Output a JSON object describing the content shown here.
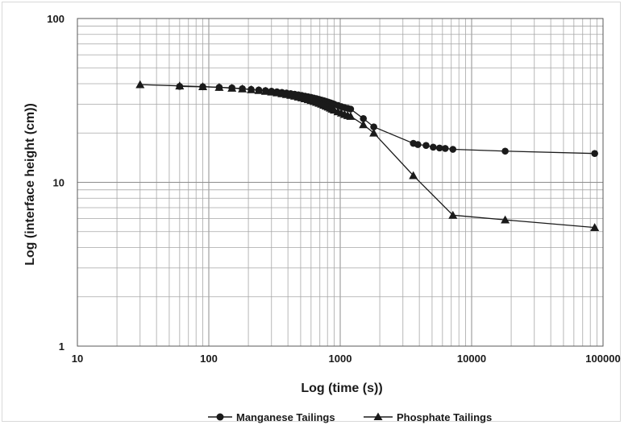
{
  "chart_data": {
    "type": "line",
    "xscale": "log",
    "yscale": "log",
    "xlim": [
      10,
      100000
    ],
    "ylim": [
      1,
      100
    ],
    "xlabel": "Log (time (s))",
    "ylabel": "Log (interface height (cm))",
    "x_tick_labels": [
      "10",
      "100",
      "1000",
      "10000",
      "100000"
    ],
    "y_tick_labels": [
      "1",
      "10",
      "100"
    ],
    "grid": true,
    "legend_position": "bottom",
    "series": [
      {
        "name": "Manganese Tailings",
        "marker": "circle",
        "color": "#1a1a1a",
        "points": [
          [
            60,
            38.5
          ],
          [
            90,
            38.3
          ],
          [
            120,
            38.0
          ],
          [
            150,
            37.7
          ],
          [
            180,
            37.3
          ],
          [
            210,
            36.9
          ],
          [
            240,
            36.6
          ],
          [
            270,
            36.3
          ],
          [
            300,
            36.0
          ],
          [
            330,
            35.7
          ],
          [
            360,
            35.4
          ],
          [
            390,
            35.1
          ],
          [
            420,
            34.8
          ],
          [
            450,
            34.5
          ],
          [
            480,
            34.2
          ],
          [
            510,
            33.9
          ],
          [
            540,
            33.6
          ],
          [
            570,
            33.3
          ],
          [
            600,
            33.0
          ],
          [
            630,
            32.7
          ],
          [
            660,
            32.4
          ],
          [
            690,
            32.1
          ],
          [
            720,
            31.8
          ],
          [
            750,
            31.5
          ],
          [
            780,
            31.2
          ],
          [
            810,
            30.9
          ],
          [
            840,
            30.6
          ],
          [
            870,
            30.3
          ],
          [
            900,
            30.0
          ],
          [
            960,
            29.5
          ],
          [
            1020,
            29.0
          ],
          [
            1080,
            28.6
          ],
          [
            1140,
            28.3
          ],
          [
            1200,
            28.0
          ],
          [
            1500,
            24.5
          ],
          [
            1800,
            21.8
          ],
          [
            3600,
            17.3
          ],
          [
            3900,
            17.0
          ],
          [
            4500,
            16.8
          ],
          [
            5100,
            16.4
          ],
          [
            5700,
            16.2
          ],
          [
            6300,
            16.1
          ],
          [
            7200,
            15.9
          ],
          [
            18000,
            15.5
          ],
          [
            86400,
            15.0
          ]
        ]
      },
      {
        "name": "Phosphate Tailings",
        "marker": "triangle",
        "color": "#1a1a1a",
        "points": [
          [
            30,
            39.5
          ],
          [
            60,
            38.8
          ],
          [
            90,
            38.4
          ],
          [
            120,
            38.0
          ],
          [
            150,
            37.6
          ],
          [
            180,
            37.2
          ],
          [
            210,
            36.8
          ],
          [
            240,
            36.4
          ],
          [
            270,
            36.0
          ],
          [
            300,
            35.6
          ],
          [
            330,
            35.2
          ],
          [
            360,
            34.8
          ],
          [
            390,
            34.4
          ],
          [
            420,
            34.0
          ],
          [
            450,
            33.6
          ],
          [
            480,
            33.2
          ],
          [
            510,
            32.8
          ],
          [
            540,
            32.4
          ],
          [
            570,
            32.0
          ],
          [
            600,
            31.6
          ],
          [
            630,
            31.2
          ],
          [
            660,
            30.8
          ],
          [
            690,
            30.4
          ],
          [
            720,
            30.0
          ],
          [
            750,
            29.6
          ],
          [
            780,
            29.2
          ],
          [
            810,
            28.8
          ],
          [
            840,
            28.4
          ],
          [
            870,
            28.0
          ],
          [
            900,
            27.6
          ],
          [
            960,
            27.0
          ],
          [
            1020,
            26.5
          ],
          [
            1080,
            26.0
          ],
          [
            1140,
            25.6
          ],
          [
            1200,
            25.3
          ],
          [
            1500,
            22.5
          ],
          [
            1800,
            20.0
          ],
          [
            3600,
            11.0
          ],
          [
            7200,
            6.3
          ],
          [
            18000,
            5.9
          ],
          [
            86400,
            5.3
          ]
        ]
      }
    ]
  }
}
